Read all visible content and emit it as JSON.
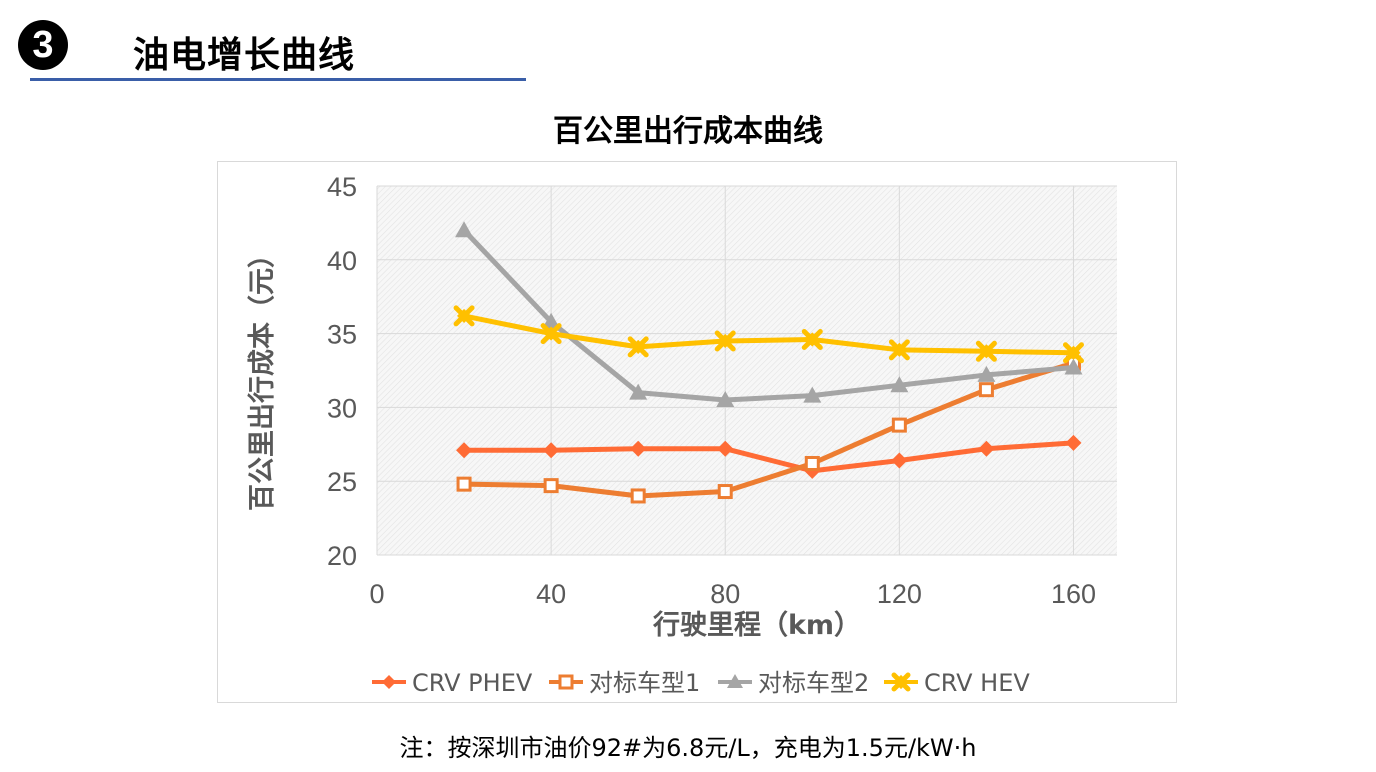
{
  "section": {
    "number": "3",
    "title": "油电增长曲线"
  },
  "footnote": "注：按深圳市油价92#为6.8元/L，充电为1.5元/kW·h",
  "chart_data": {
    "type": "line",
    "title": "百公里出行成本曲线",
    "xlabel": "行驶里程（km）",
    "ylabel": "百公里出行成本（元）",
    "xlim": [
      0,
      170
    ],
    "ylim": [
      20,
      45
    ],
    "xticks": [
      0,
      40,
      80,
      120,
      160
    ],
    "yticks": [
      20,
      25,
      30,
      35,
      40,
      45
    ],
    "x": [
      20,
      40,
      60,
      80,
      100,
      120,
      140,
      160
    ],
    "grid": true,
    "legend_position": "bottom",
    "series": [
      {
        "name": "CRV PHEV",
        "color": "#ff6b35",
        "marker": "diamond",
        "values": [
          27.1,
          27.1,
          27.2,
          27.2,
          25.7,
          26.4,
          27.2,
          27.6
        ]
      },
      {
        "name": "对标车型1",
        "color": "#ed7d31",
        "marker": "square",
        "values": [
          24.8,
          24.7,
          24.0,
          24.3,
          26.2,
          28.8,
          31.2,
          33.0
        ]
      },
      {
        "name": "对标车型2",
        "color": "#a5a5a5",
        "marker": "triangle",
        "values": [
          42.0,
          35.8,
          31.0,
          30.5,
          30.8,
          31.5,
          32.2,
          32.7
        ]
      },
      {
        "name": "CRV HEV",
        "color": "#ffc000",
        "marker": "x",
        "values": [
          36.2,
          35.0,
          34.1,
          34.5,
          34.6,
          33.9,
          33.8,
          33.7
        ]
      }
    ]
  }
}
